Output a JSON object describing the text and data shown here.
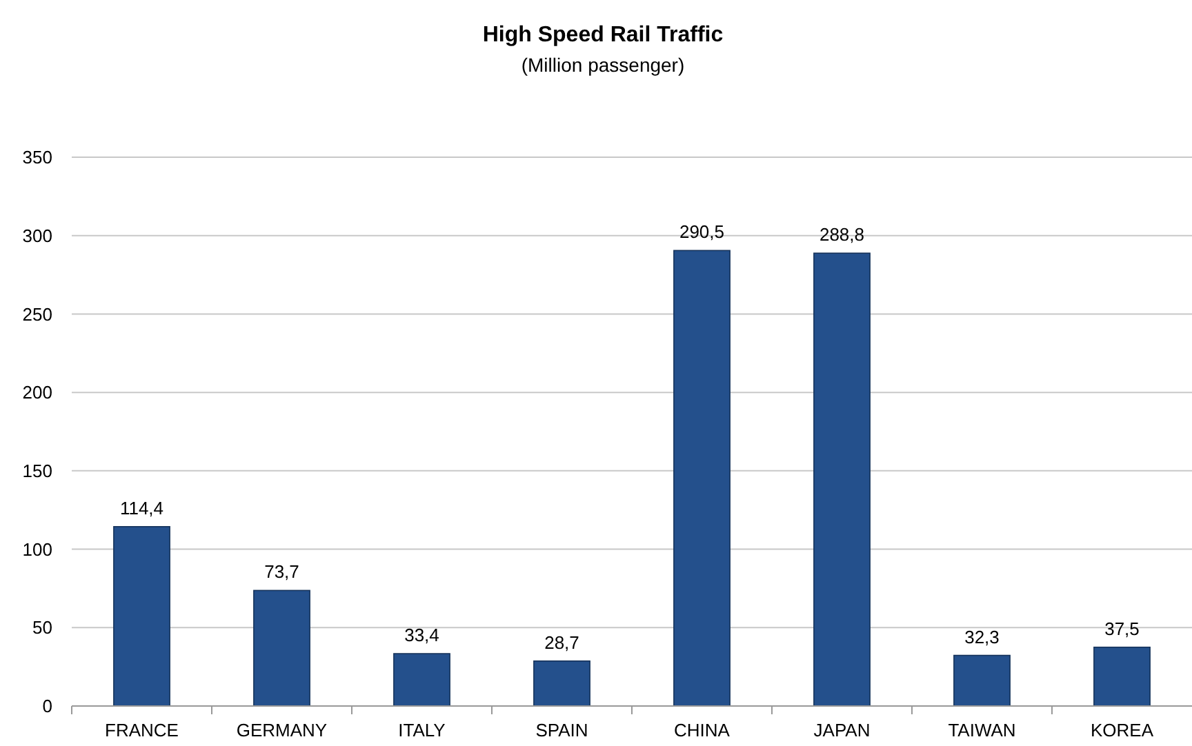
{
  "chart_data": {
    "type": "bar",
    "title": "High Speed Rail Traffic",
    "subtitle": "(Million passenger)",
    "categories": [
      "FRANCE",
      "GERMANY",
      "ITALY",
      "SPAIN",
      "CHINA",
      "JAPAN",
      "TAIWAN",
      "KOREA"
    ],
    "values": [
      114.4,
      73.7,
      33.4,
      28.7,
      290.5,
      288.8,
      32.3,
      37.5
    ],
    "value_labels": [
      "114,4",
      "73,7",
      "33,4",
      "28,7",
      "290,5",
      "288,8",
      "32,3",
      "37,5"
    ],
    "color": "#24508c",
    "ylim": [
      0,
      350
    ],
    "yticks": [
      0,
      50,
      100,
      150,
      200,
      250,
      300,
      350
    ],
    "grid": "y"
  }
}
